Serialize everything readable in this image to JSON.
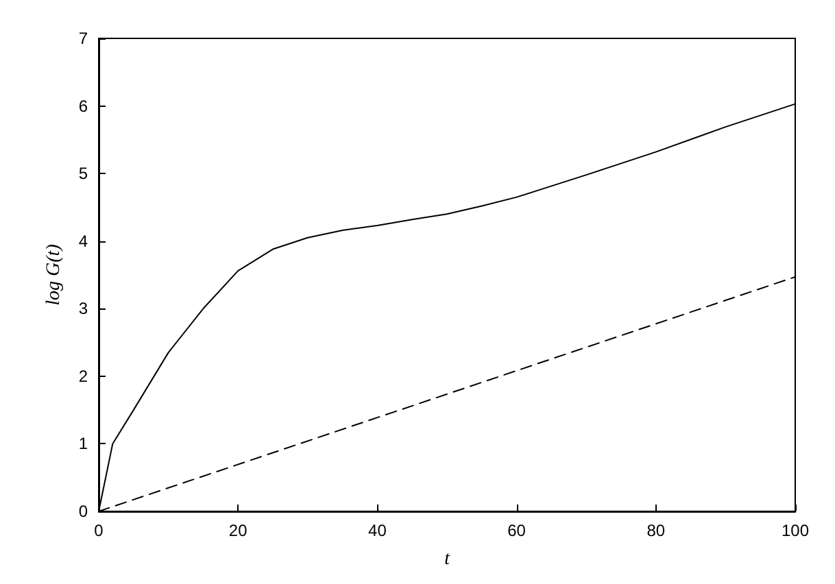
{
  "chart_data": {
    "type": "line",
    "xlabel": "t",
    "ylabel": "log G(t)",
    "xlim": [
      0,
      100
    ],
    "ylim": [
      0,
      7
    ],
    "xticks": [
      0,
      20,
      40,
      60,
      80,
      100
    ],
    "yticks": [
      0,
      1,
      2,
      3,
      4,
      5,
      6,
      7
    ],
    "grid": false,
    "marker": "none",
    "series": [
      {
        "color": "#000000",
        "line_style": "solid",
        "x": [
          0,
          2,
          5,
          10,
          15,
          20,
          25,
          30,
          35,
          40,
          45,
          50,
          55,
          60,
          70,
          80,
          90,
          100
        ],
        "values": [
          0,
          1.0,
          1.5,
          2.35,
          3.0,
          3.56,
          3.88,
          4.05,
          4.16,
          4.23,
          4.32,
          4.4,
          4.52,
          4.65,
          4.98,
          5.32,
          5.69,
          6.03
        ]
      },
      {
        "color": "#000000",
        "line_style": "dashed",
        "x": [
          0,
          100
        ],
        "values": [
          0,
          3.47
        ]
      }
    ]
  }
}
